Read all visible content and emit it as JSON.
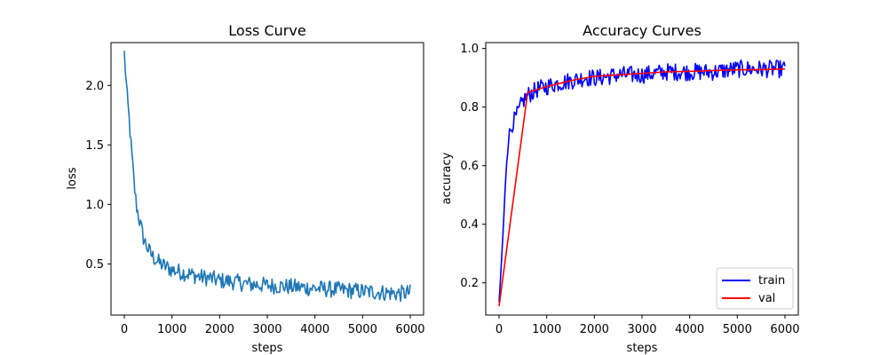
{
  "chart_data": [
    {
      "type": "line",
      "title": "Loss Curve",
      "xlabel": "steps",
      "ylabel": "loss",
      "xlim": [
        -280,
        6280
      ],
      "ylim": [
        0.07,
        2.36
      ],
      "xticks": [
        "0",
        "1000",
        "2000",
        "3000",
        "4000",
        "5000",
        "6000"
      ],
      "yticks": [
        "0.5",
        "1.0",
        "1.5",
        "2.0"
      ],
      "series": [
        {
          "color": "#1f77b4",
          "x": [
            0,
            50,
            100,
            150,
            200,
            250,
            300,
            400,
            500,
            600,
            700,
            800,
            1000,
            1200,
            1400,
            1600,
            1800,
            2000,
            2300,
            2600,
            3000,
            3400,
            3800,
            4200,
            4600,
            5000,
            5400,
            5800,
            6000
          ],
          "y": [
            2.27,
            1.95,
            1.72,
            1.45,
            1.2,
            1.0,
            0.9,
            0.72,
            0.62,
            0.56,
            0.52,
            0.49,
            0.45,
            0.43,
            0.41,
            0.39,
            0.38,
            0.36,
            0.35,
            0.33,
            0.32,
            0.31,
            0.3,
            0.29,
            0.28,
            0.27,
            0.26,
            0.25,
            0.26
          ],
          "noise": 0.07
        }
      ]
    },
    {
      "type": "line",
      "title": "Accuracy Curves",
      "xlabel": "steps",
      "ylabel": "accuracy",
      "xlim": [
        -280,
        6280
      ],
      "ylim": [
        0.09,
        1.02
      ],
      "xticks": [
        "0",
        "1000",
        "2000",
        "3000",
        "4000",
        "5000",
        "6000"
      ],
      "yticks": [
        "0.2",
        "0.4",
        "0.6",
        "0.8",
        "1.0"
      ],
      "legend": "bottom-right",
      "series": [
        {
          "name": "train",
          "color": "#0000ff",
          "x": [
            0,
            50,
            100,
            150,
            200,
            300,
            400,
            500,
            600,
            700,
            800,
            1000,
            1200,
            1500,
            1800,
            2100,
            2500,
            3000,
            3500,
            4000,
            4500,
            5000,
            5500,
            6000
          ],
          "y": [
            0.13,
            0.27,
            0.42,
            0.6,
            0.7,
            0.75,
            0.78,
            0.82,
            0.84,
            0.85,
            0.86,
            0.87,
            0.88,
            0.89,
            0.9,
            0.9,
            0.91,
            0.91,
            0.92,
            0.92,
            0.92,
            0.93,
            0.93,
            0.93
          ],
          "noise": 0.03
        },
        {
          "name": "val",
          "color": "#ff0000",
          "x": [
            0,
            600,
            1000,
            1500,
            2000,
            2500,
            3000,
            3500,
            4000,
            4500,
            5000,
            5500,
            6000
          ],
          "y": [
            0.12,
            0.85,
            0.87,
            0.89,
            0.905,
            0.91,
            0.915,
            0.92,
            0.922,
            0.925,
            0.927,
            0.928,
            0.93
          ]
        }
      ]
    }
  ]
}
